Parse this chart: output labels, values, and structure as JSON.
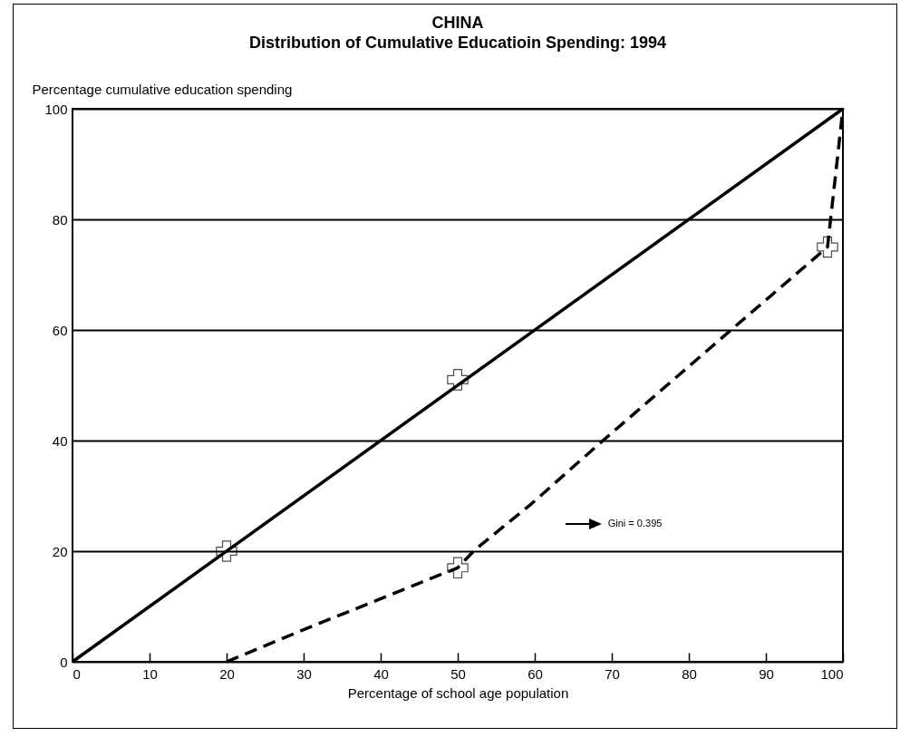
{
  "chart_data": {
    "type": "line",
    "title": "CHINA",
    "subtitle": "Distribution of Cumulative Educatioin Spending: 1994",
    "xlabel": "Percentage of school age population",
    "ylabel": "Percentage cumulative education spending",
    "series": [
      {
        "x": [
          0,
          100
        ],
        "values": [
          0,
          100
        ],
        "color": "#000000",
        "line_style": "solid"
      },
      {
        "x": [
          20,
          30,
          50,
          52.2,
          59.6,
          68.6,
          84.4,
          98,
          100
        ],
        "values": [
          0,
          5.8,
          17,
          20.2,
          28.6,
          39.7,
          58.7,
          75,
          100
        ],
        "color": "#000000",
        "line_style": "dashed"
      },
      {
        "type": "scatter",
        "x": [
          20,
          50,
          50,
          98
        ],
        "values": [
          20,
          51,
          17,
          75
        ],
        "color": "#000000",
        "marker": "cross"
      }
    ],
    "xlim": [
      0,
      100
    ],
    "xticks": [
      0,
      10,
      20,
      30,
      40,
      50,
      60,
      70,
      80,
      90,
      100
    ],
    "ylim": [
      0,
      100
    ],
    "yticks": [
      0,
      20,
      40,
      60,
      80,
      100
    ],
    "grid": "y",
    "annotations": [
      "Gini = 0.395"
    ]
  }
}
